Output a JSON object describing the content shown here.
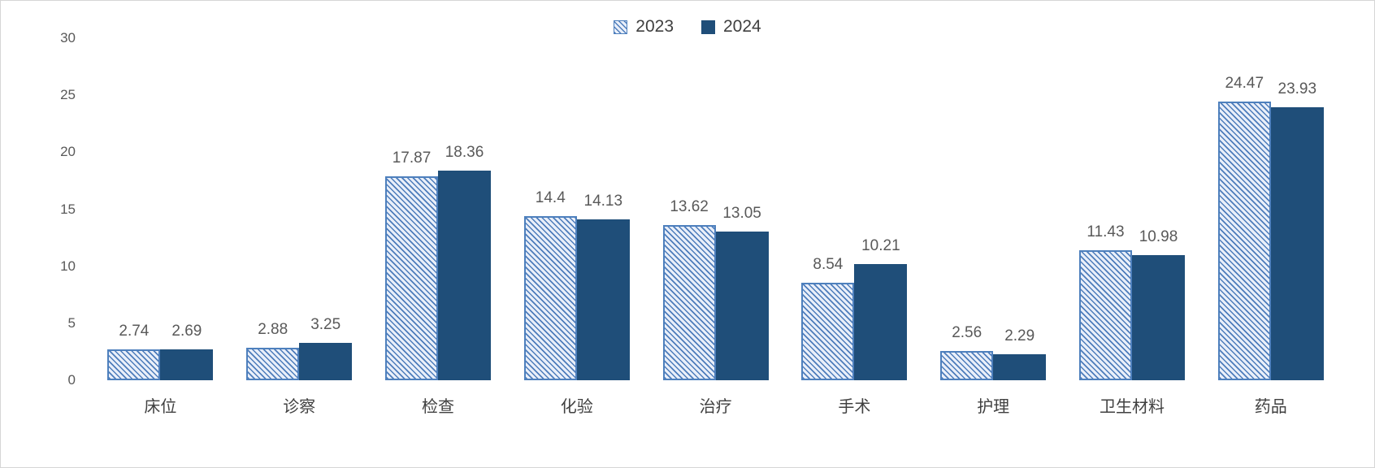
{
  "chart_data": {
    "type": "bar",
    "title": "",
    "xlabel": "",
    "ylabel": "",
    "categories": [
      "床位",
      "诊察",
      "检查",
      "化验",
      "治疗",
      "手术",
      "护理",
      "卫生材料",
      "药品"
    ],
    "series": [
      {
        "name": "2023",
        "style": "hatched-light-downward-diagonal",
        "values": [
          2.74,
          2.88,
          17.87,
          14.4,
          13.62,
          8.54,
          2.56,
          11.43,
          24.47
        ]
      },
      {
        "name": "2024",
        "style": "solid",
        "values": [
          2.69,
          3.25,
          18.36,
          14.13,
          13.05,
          10.21,
          2.29,
          10.98,
          23.93
        ]
      }
    ],
    "ylim": [
      0,
      30
    ],
    "yticks": [
      0,
      5,
      10,
      15,
      20,
      25,
      30
    ],
    "grid": false,
    "data_labels": true,
    "legend_position": "top-center"
  },
  "colors": {
    "series_2024_solid": "#1F4E79",
    "series_2023_hatch_foreground": "#4D7CBB",
    "series_2023_hatch_background": "#E9EFF9",
    "series_2023_border": "#4E80BD",
    "value_label_text": "#595959",
    "axis_tick_text": "#595959",
    "category_text": "#404040",
    "frame_border": "#D6D6D6"
  }
}
